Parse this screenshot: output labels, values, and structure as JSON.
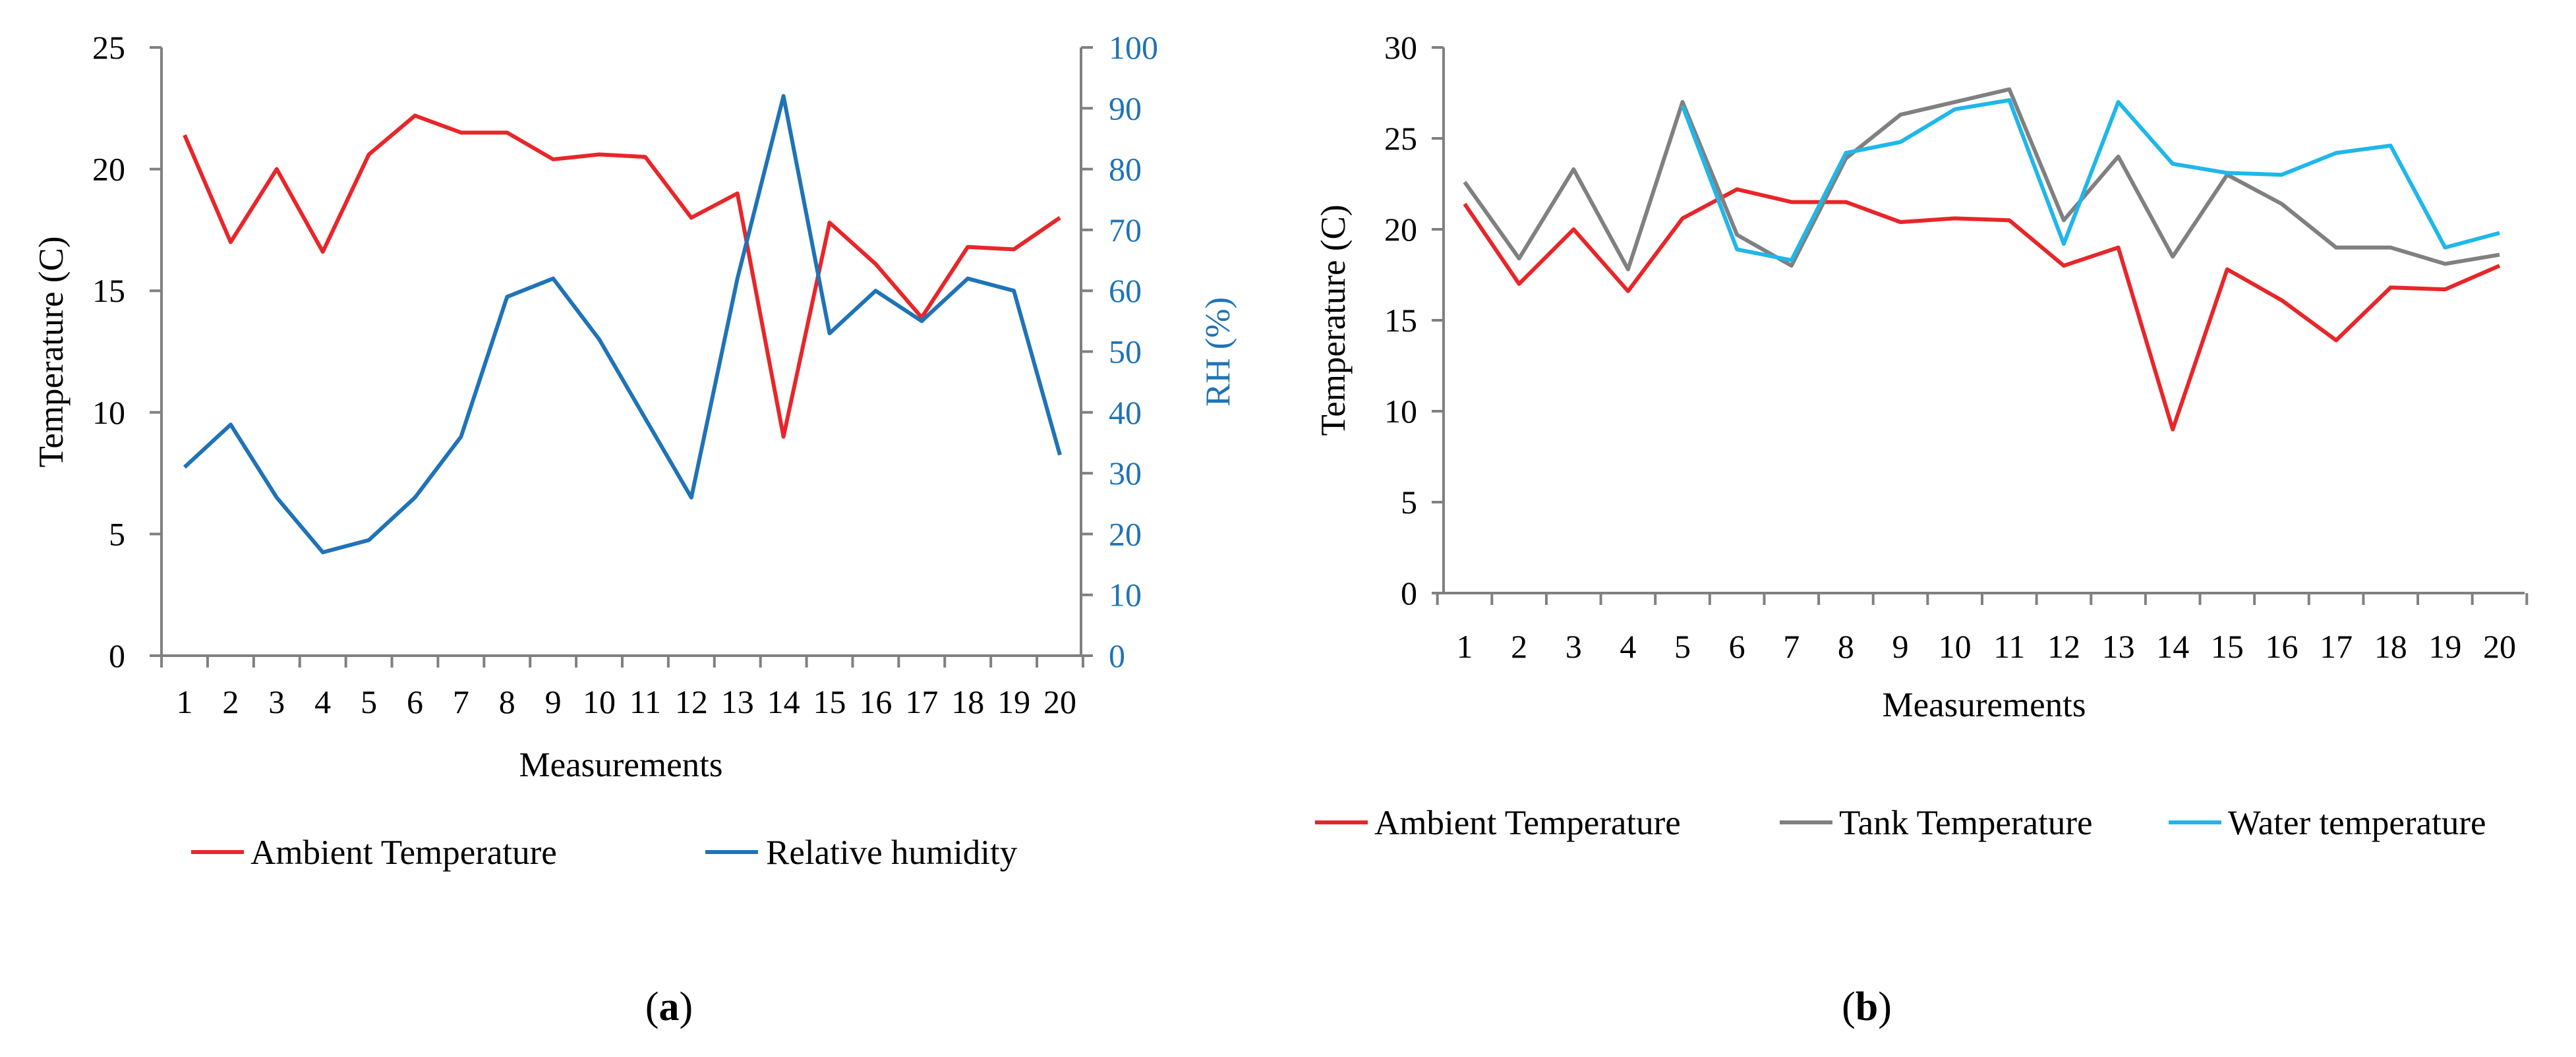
{
  "colors": {
    "ambient": "#e8262a",
    "humidity": "#1f73b7",
    "tank": "#808080",
    "water": "#1fb7ea",
    "axis": "#808080"
  },
  "chart_data": [
    {
      "id": "a",
      "type": "line",
      "panel_label": {
        "open": "(",
        "letter": "a",
        "close": ")"
      },
      "categories": [
        "1",
        "2",
        "3",
        "4",
        "5",
        "6",
        "7",
        "8",
        "9",
        "10",
        "11",
        "12",
        "13",
        "14",
        "15",
        "16",
        "17",
        "18",
        "19",
        "20"
      ],
      "xlabel": "Measurements",
      "ylabel": "Temperature (C)",
      "y2label": "RH (%)",
      "ylim": [
        0,
        25
      ],
      "yticks": [
        "0",
        "5",
        "10",
        "15",
        "20",
        "25"
      ],
      "y2lim": [
        0,
        100
      ],
      "y2ticks": [
        "0",
        "10",
        "20",
        "30",
        "40",
        "50",
        "60",
        "70",
        "80",
        "90",
        "100"
      ],
      "series": [
        {
          "name": "Ambient Temperature",
          "axis": "left",
          "color": "#e8262a",
          "values": [
            21.4,
            17.0,
            20.0,
            16.6,
            20.6,
            22.2,
            21.5,
            21.5,
            20.4,
            20.6,
            20.5,
            18.0,
            19.0,
            9.0,
            17.8,
            16.1,
            13.9,
            16.8,
            16.7,
            18.0
          ]
        },
        {
          "name": "Relative humidity",
          "axis": "right",
          "color": "#1f73b7",
          "values": [
            31,
            38,
            26,
            17,
            19,
            26,
            36,
            59,
            62,
            52,
            39,
            26,
            62,
            92,
            53,
            60,
            55,
            62,
            60,
            33
          ]
        }
      ],
      "legend": [
        "Ambient Temperature",
        "Relative humidity"
      ],
      "legend_position": "bottom"
    },
    {
      "id": "b",
      "type": "line",
      "panel_label": {
        "open": "(",
        "letter": "b",
        "close": ")"
      },
      "categories": [
        "1",
        "2",
        "3",
        "4",
        "5",
        "6",
        "7",
        "8",
        "9",
        "10",
        "11",
        "12",
        "13",
        "14",
        "15",
        "16",
        "17",
        "18",
        "19",
        "20"
      ],
      "xlabel": "Measurements",
      "ylabel": "Temperature (C)",
      "ylim": [
        0,
        30
      ],
      "yticks": [
        "0",
        "5",
        "10",
        "15",
        "20",
        "25",
        "30"
      ],
      "series": [
        {
          "name": "Ambient Temperature",
          "color": "#e8262a",
          "values": [
            21.4,
            17.0,
            20.0,
            16.6,
            20.6,
            22.2,
            21.5,
            21.5,
            20.4,
            20.6,
            20.5,
            18.0,
            19.0,
            9.0,
            17.8,
            16.1,
            13.9,
            16.8,
            16.7,
            18.0
          ]
        },
        {
          "name": "Tank Temperature",
          "color": "#808080",
          "values": [
            22.6,
            18.4,
            23.3,
            17.8,
            27.0,
            19.7,
            18.0,
            23.9,
            26.3,
            27.0,
            27.7,
            20.5,
            24.0,
            18.5,
            23.0,
            21.4,
            19.0,
            19.0,
            18.1,
            18.6
          ]
        },
        {
          "name": "Water temperature",
          "color": "#1fb7ea",
          "values": [
            null,
            null,
            null,
            null,
            26.8,
            18.9,
            18.3,
            24.2,
            24.8,
            26.6,
            27.1,
            19.2,
            27.0,
            23.6,
            23.1,
            23.0,
            24.2,
            24.6,
            19.0,
            19.8
          ]
        }
      ],
      "legend": [
        "Ambient Temperature",
        "Tank Temperature",
        "Water temperature"
      ],
      "legend_position": "bottom"
    }
  ]
}
